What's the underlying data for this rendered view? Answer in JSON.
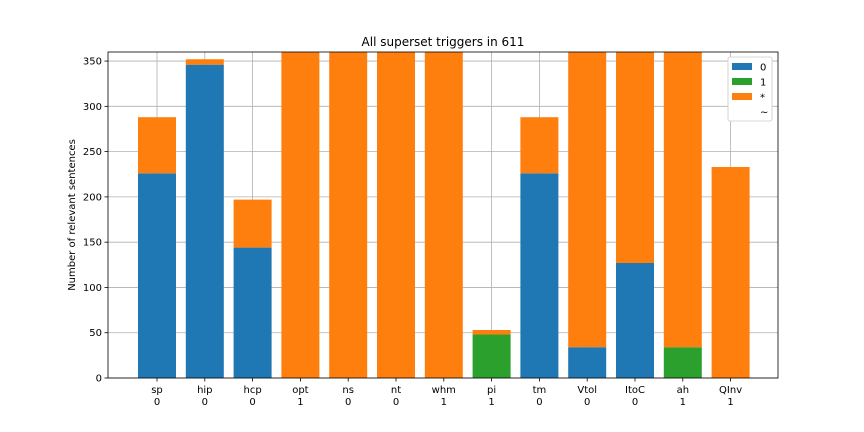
{
  "chart_data": {
    "type": "bar",
    "stacked": true,
    "title": "All superset triggers in 611",
    "xlabel": "",
    "ylabel": "Number of relevant sentences",
    "ylim": [
      0,
      360
    ],
    "yticks": [
      0,
      50,
      100,
      150,
      200,
      250,
      300,
      350
    ],
    "grid": true,
    "legend_position": "top-right",
    "categories": [
      "sp\n0",
      "hip\n0",
      "hcp\n0",
      "opt\n1",
      "ns\n0",
      "nt\n0",
      "whm\n1",
      "pi\n1",
      "tm\n0",
      "Vtol\n0",
      "ItoC\n0",
      "ah\n1",
      "QInv\n1"
    ],
    "series": [
      {
        "name": "0",
        "color": "#1f77b4",
        "values": [
          226,
          346,
          144,
          0,
          0,
          0,
          0,
          0,
          226,
          34,
          127,
          0,
          0
        ]
      },
      {
        "name": "1",
        "color": "#2ca02c",
        "values": [
          0,
          0,
          0,
          0,
          0,
          0,
          0,
          48,
          0,
          0,
          0,
          34,
          0
        ]
      },
      {
        "name": "*",
        "color": "#ff7f0e",
        "values": [
          62,
          6,
          53,
          360,
          360,
          360,
          360,
          5,
          62,
          326,
          233,
          326,
          233
        ]
      },
      {
        "name": "~",
        "color": "#ffffff",
        "values": [
          0,
          0,
          0,
          0,
          0,
          0,
          0,
          0,
          0,
          0,
          0,
          0,
          0
        ]
      }
    ]
  }
}
